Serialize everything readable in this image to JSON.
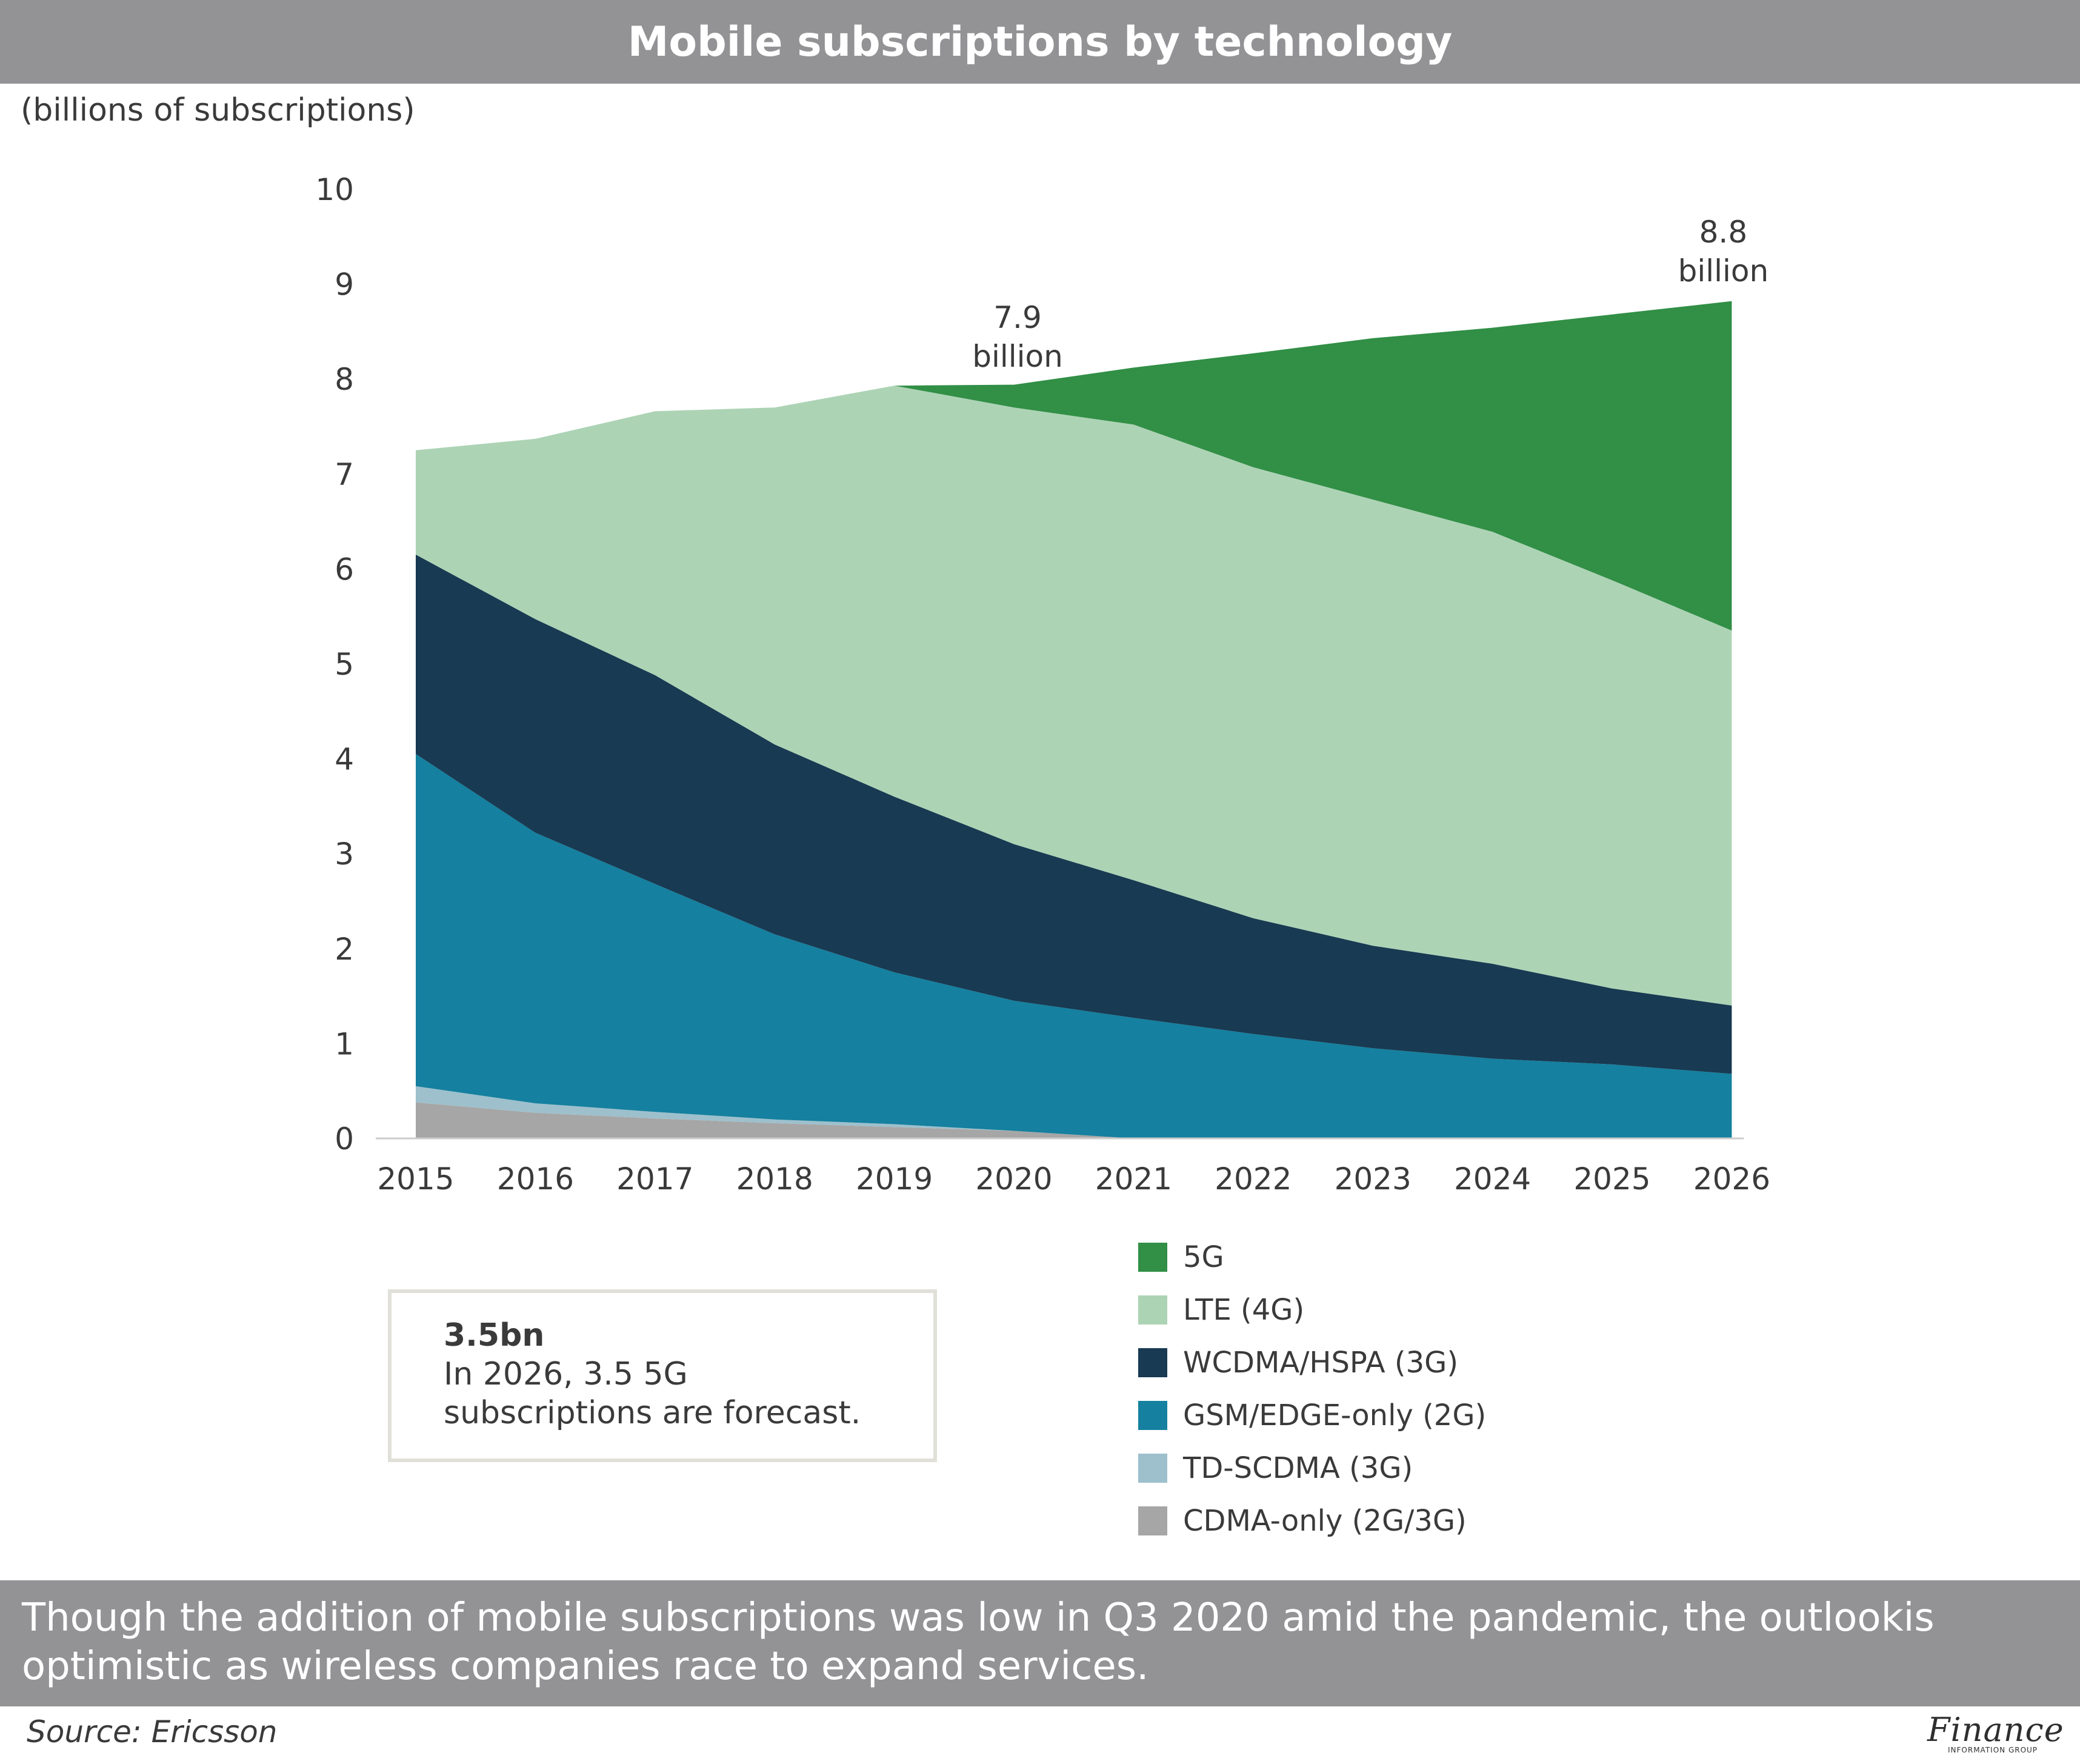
{
  "header": {
    "title": "Mobile subscriptions by technology"
  },
  "unit_label": "(billions of subscriptions)",
  "chart_data": {
    "type": "area",
    "stacked": true,
    "title": "Mobile subscriptions by technology",
    "ylabel": "(billions of subscriptions)",
    "xlabel": "",
    "ylim": [
      0,
      10
    ],
    "yticks": [
      "0",
      "1",
      "2",
      "3",
      "4",
      "5",
      "6",
      "7",
      "8",
      "9",
      "10"
    ],
    "categories": [
      "2015",
      "2016",
      "2017",
      "2018",
      "2019",
      "2020",
      "2021",
      "2022",
      "2023",
      "2024",
      "2025",
      "2026"
    ],
    "series": [
      {
        "name": "CDMA-only (2G/3G)",
        "color": "#a6a6a6",
        "values": [
          0.38,
          0.27,
          0.21,
          0.16,
          0.12,
          0.08,
          0,
          0,
          0,
          0,
          0,
          0
        ]
      },
      {
        "name": "TD-SCDMA (3G)",
        "color": "#9dc0cc",
        "values": [
          0.17,
          0.1,
          0.07,
          0.04,
          0.03,
          0,
          0,
          0,
          0,
          0,
          0,
          0
        ]
      },
      {
        "name": "GSM/EDGE-only (2G)",
        "color": "#15809f",
        "values": [
          3.5,
          2.85,
          2.4,
          1.95,
          1.6,
          1.37,
          1.27,
          1.1,
          0.95,
          0.84,
          0.78,
          0.68
        ]
      },
      {
        "name": "WCDMA/HSPA (3G)",
        "color": "#183a52",
        "values": [
          2.1,
          2.25,
          2.2,
          2.0,
          1.85,
          1.65,
          1.45,
          1.22,
          1.08,
          1.0,
          0.8,
          0.72
        ]
      },
      {
        "name": "LTE (4G)",
        "color": "#add3b5",
        "values": [
          1.1,
          1.9,
          2.78,
          3.55,
          4.33,
          4.6,
          4.8,
          4.75,
          4.7,
          4.55,
          4.3,
          3.95
        ]
      },
      {
        "name": "5G",
        "color": "#318f46",
        "values": [
          0,
          0,
          0,
          0,
          0,
          0.24,
          0.6,
          1.2,
          1.7,
          2.15,
          2.8,
          3.47
        ]
      }
    ],
    "annotations": [
      {
        "category": "2020",
        "value": 7.9,
        "line1": "7.9",
        "line2": "billion"
      },
      {
        "category": "2026",
        "value": 8.8,
        "line1": "8.8",
        "line2": "billion"
      }
    ]
  },
  "legend": {
    "items": [
      {
        "label": "5G",
        "color": "#318f46"
      },
      {
        "label": "LTE (4G)",
        "color": "#add3b5"
      },
      {
        "label": "WCDMA/HSPA (3G)",
        "color": "#183a52"
      },
      {
        "label": "GSM/EDGE-only (2G)",
        "color": "#15809f"
      },
      {
        "label": "TD-SCDMA (3G)",
        "color": "#9dc0cc"
      },
      {
        "label": "CDMA-only (2G/3G)",
        "color": "#a6a6a6"
      }
    ]
  },
  "callout": {
    "headline": "3.5bn",
    "text": "In 2026, 3.5 5G subscriptions are forecast."
  },
  "footer": {
    "caption": "Though the addition of mobile subscriptions was low in Q3 2020 amid the pandemic, the outlookis optimistic as wireless companies race to expand services."
  },
  "source": "Source: Ericsson",
  "logo": {
    "word": "Finance",
    "subtitle": "INFORMATION GROUP"
  }
}
